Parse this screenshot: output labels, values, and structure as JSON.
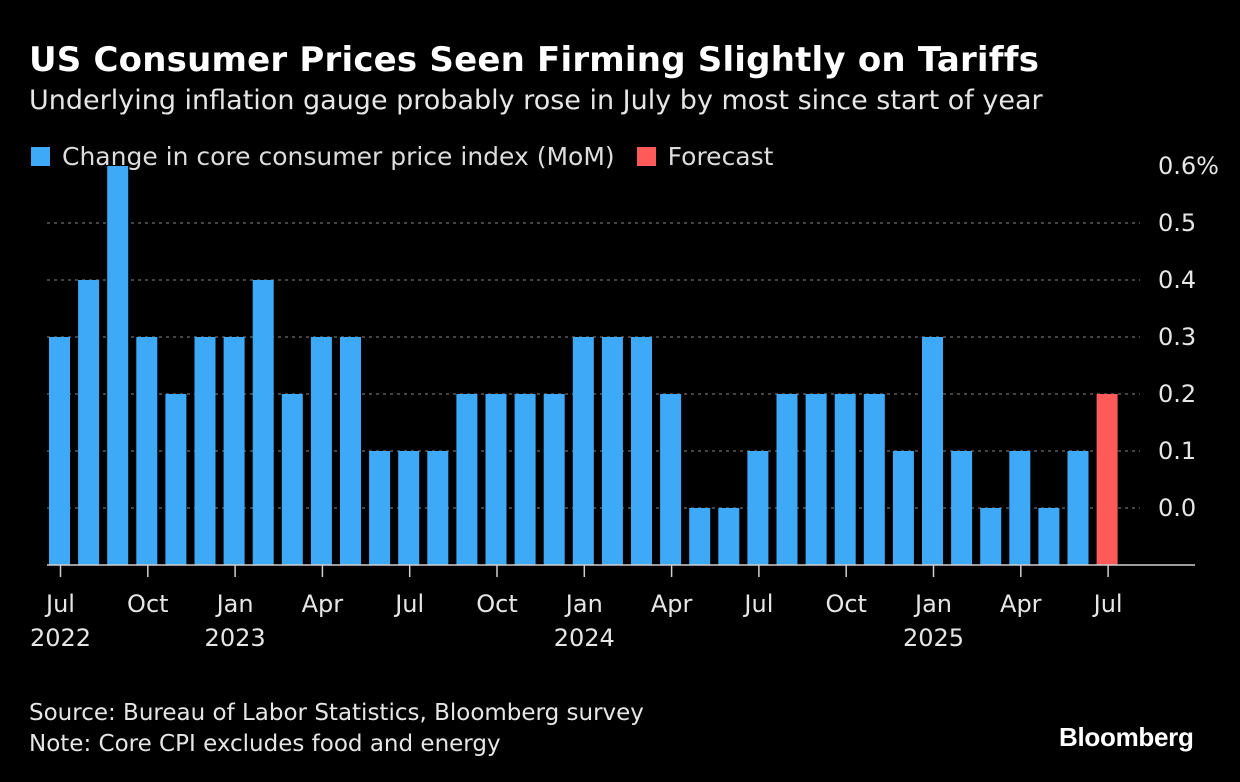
{
  "header": {
    "title": "US Consumer Prices Seen Firming Slightly on Tariffs",
    "subtitle": "Underlying inflation gauge probably rose in July by most since start of year"
  },
  "legend": {
    "items": [
      {
        "label": "Change in core consumer price index (MoM)",
        "color": "#3ea9f7"
      },
      {
        "label": "Forecast",
        "color": "#ff5a5a"
      }
    ]
  },
  "footer": {
    "source": "Source: Bureau of Labor Statistics, Bloomberg survey",
    "note": "Note: Core CPI excludes food and energy",
    "brand": "Bloomberg"
  },
  "chart_data": {
    "type": "bar",
    "title": "US Consumer Prices Seen Firming Slightly on Tariffs",
    "subtitle": "Underlying inflation gauge probably rose in July by most since start of year",
    "categories": [
      "2022-07",
      "2022-08",
      "2022-09",
      "2022-10",
      "2022-11",
      "2022-12",
      "2023-01",
      "2023-02",
      "2023-03",
      "2023-04",
      "2023-05",
      "2023-06",
      "2023-07",
      "2023-08",
      "2023-09",
      "2023-10",
      "2023-11",
      "2023-12",
      "2024-01",
      "2024-02",
      "2024-03",
      "2024-04",
      "2024-05",
      "2024-06",
      "2024-07",
      "2024-08",
      "2024-09",
      "2024-10",
      "2024-11",
      "2024-12",
      "2025-01",
      "2025-02",
      "2025-03",
      "2025-04",
      "2025-05",
      "2025-06",
      "2025-07"
    ],
    "series": [
      {
        "name": "Change in core consumer price index (MoM)",
        "color": "#3ea9f7",
        "values": [
          0.3,
          0.4,
          0.6,
          0.3,
          0.2,
          0.3,
          0.3,
          0.4,
          0.2,
          0.3,
          0.3,
          0.1,
          0.1,
          0.1,
          0.2,
          0.2,
          0.2,
          0.2,
          0.3,
          0.3,
          0.3,
          0.2,
          0.0,
          0.0,
          0.1,
          0.2,
          0.2,
          0.2,
          0.2,
          0.1,
          0.3,
          0.1,
          0.0,
          0.1,
          0.0,
          0.1,
          null
        ]
      },
      {
        "name": "Forecast",
        "color": "#ff5a5a",
        "values": [
          null,
          null,
          null,
          null,
          null,
          null,
          null,
          null,
          null,
          null,
          null,
          null,
          null,
          null,
          null,
          null,
          null,
          null,
          null,
          null,
          null,
          null,
          null,
          null,
          null,
          null,
          null,
          null,
          null,
          null,
          null,
          null,
          null,
          null,
          null,
          null,
          0.2
        ]
      }
    ],
    "y_ticks": [
      "0.0",
      "0.1",
      "0.2",
      "0.3",
      "0.4",
      "0.5",
      "0.6%"
    ],
    "ylim": [
      -0.1,
      0.6
    ],
    "x_tick_labels": [
      {
        "month": "Jul",
        "year": "2022",
        "index": 0
      },
      {
        "month": "Oct",
        "year": "",
        "index": 3
      },
      {
        "month": "Jan",
        "year": "2023",
        "index": 6
      },
      {
        "month": "Apr",
        "year": "",
        "index": 9
      },
      {
        "month": "Jul",
        "year": "",
        "index": 12
      },
      {
        "month": "Oct",
        "year": "",
        "index": 15
      },
      {
        "month": "Jan",
        "year": "2024",
        "index": 18
      },
      {
        "month": "Apr",
        "year": "",
        "index": 21
      },
      {
        "month": "Jul",
        "year": "",
        "index": 24
      },
      {
        "month": "Oct",
        "year": "",
        "index": 27
      },
      {
        "month": "Jan",
        "year": "2025",
        "index": 30
      },
      {
        "month": "Apr",
        "year": "",
        "index": 33
      },
      {
        "month": "Jul",
        "year": "",
        "index": 36
      }
    ],
    "y_axis_position": "right",
    "grid": true,
    "legend_position": "top-left"
  }
}
